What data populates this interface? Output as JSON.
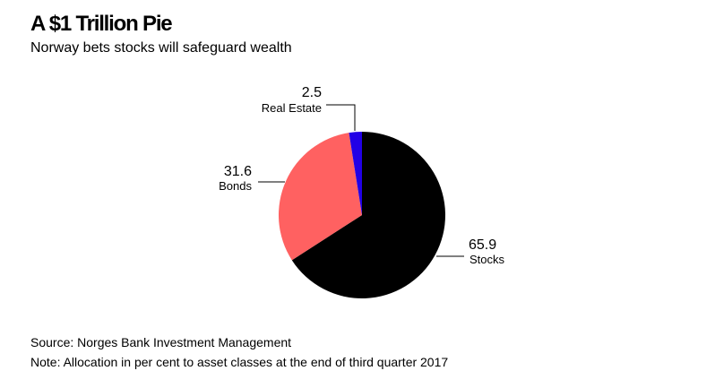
{
  "title": "A $1 Trillion Pie",
  "subtitle": "Norway bets stocks will safeguard wealth",
  "source": "Source: Norges Bank Investment Management",
  "note": "Note: Allocation in per cent to asset classes at the end of third quarter 2017",
  "chart_data": {
    "type": "pie",
    "title": "A $1 Trillion Pie",
    "subtitle": "Norway bets stocks will safeguard wealth",
    "unit": "per cent",
    "slices": [
      {
        "label": "Stocks",
        "value": 65.9,
        "value_label": "65.9",
        "color": "#000000"
      },
      {
        "label": "Bonds",
        "value": 31.6,
        "value_label": "31.6",
        "color": "#ff6161"
      },
      {
        "label": "Real Estate",
        "value": 2.5,
        "value_label": "2.5",
        "color": "#2200e6"
      }
    ]
  }
}
